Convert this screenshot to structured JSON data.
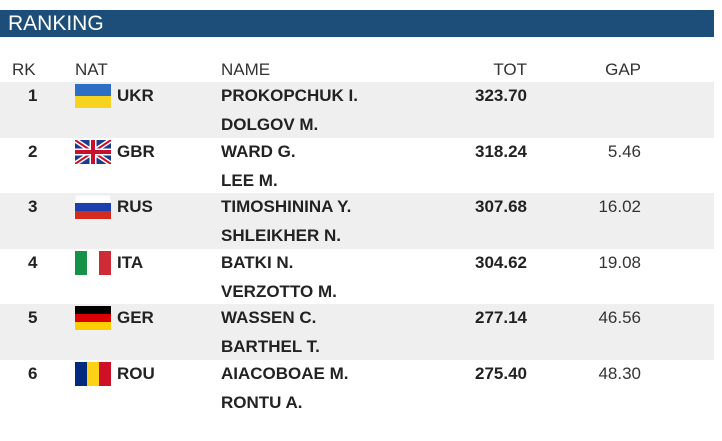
{
  "header": {
    "title": "RANKING"
  },
  "table": {
    "columns": [
      "RK",
      "NAT",
      "NAME",
      "TOT",
      "GAP"
    ],
    "rows": [
      {
        "rank": "1",
        "nat": "UKR",
        "names": [
          "PROKOPCHUK I.",
          "DOLGOV M."
        ],
        "tot": "323.70"
      },
      {
        "rank": "2",
        "nat": "GBR",
        "names": [
          "WARD G.",
          "LEE M."
        ],
        "tot": "318.24",
        "gap": "5.46"
      },
      {
        "rank": "3",
        "nat": "RUS",
        "names": [
          "TIMOSHININA Y.",
          "SHLEIKHER N."
        ],
        "tot": "307.68",
        "gap": "16.02"
      },
      {
        "rank": "4",
        "nat": "ITA",
        "names": [
          "BATKI N.",
          "VERZOTTO M."
        ],
        "tot": "304.62",
        "gap": "19.08"
      },
      {
        "rank": "5",
        "nat": "GER",
        "names": [
          "WASSEN C.",
          "BARTHEL T."
        ],
        "tot": "277.14",
        "gap": "46.56"
      },
      {
        "rank": "6",
        "nat": "ROU",
        "names": [
          "AIACOBOAE M.",
          "RONTU A."
        ],
        "tot": "275.40",
        "gap": "48.30"
      }
    ]
  }
}
